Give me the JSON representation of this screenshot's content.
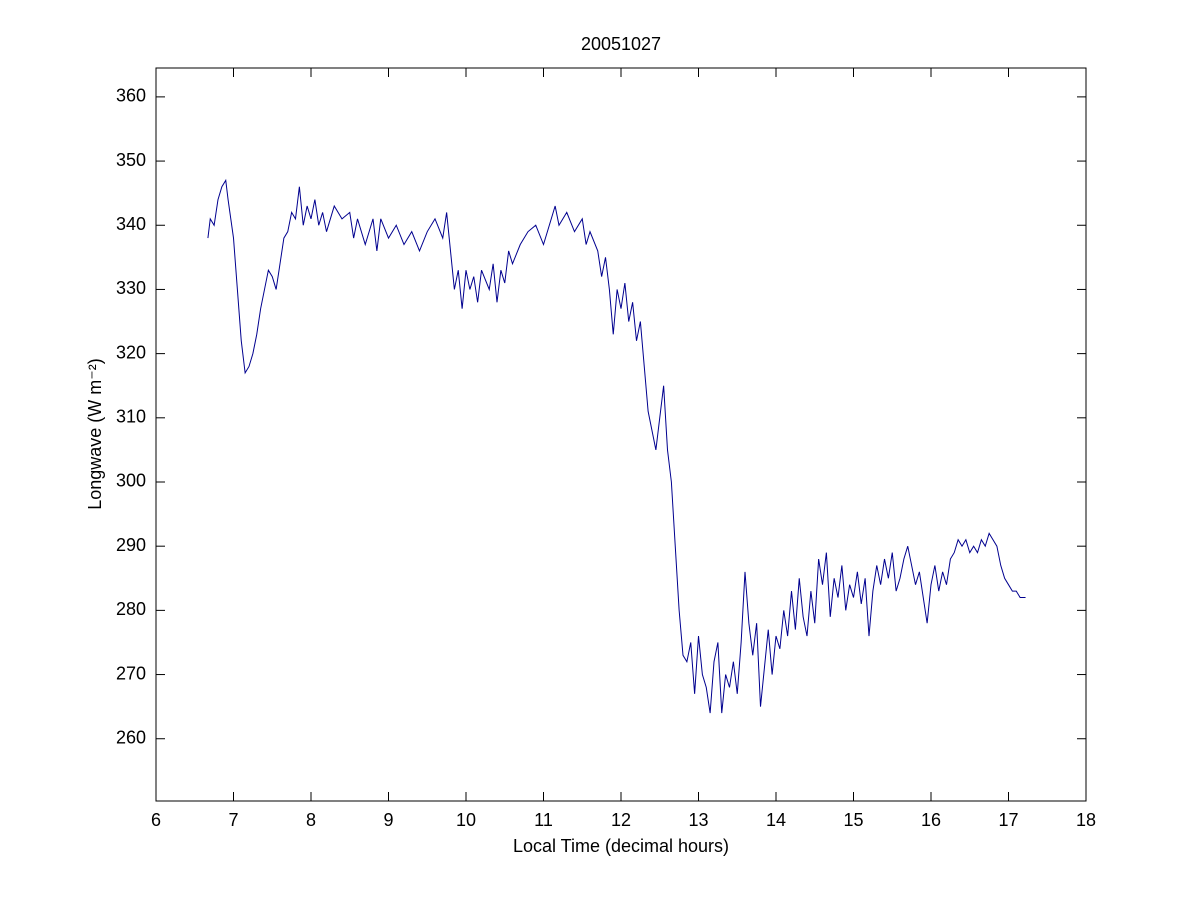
{
  "chart_data": {
    "type": "line",
    "title": "20051027",
    "xlabel": "Local Time (decimal hours)",
    "ylabel": "Longwave (W m⁻²)",
    "x": [
      6.67,
      6.7,
      6.75,
      6.8,
      6.85,
      6.9,
      6.93,
      7.0,
      7.05,
      7.1,
      7.15,
      7.2,
      7.25,
      7.3,
      7.35,
      7.4,
      7.45,
      7.5,
      7.55,
      7.6,
      7.65,
      7.7,
      7.75,
      7.8,
      7.85,
      7.9,
      7.95,
      8.0,
      8.05,
      8.1,
      8.15,
      8.2,
      8.3,
      8.4,
      8.5,
      8.55,
      8.6,
      8.7,
      8.8,
      8.85,
      8.9,
      9.0,
      9.1,
      9.2,
      9.3,
      9.4,
      9.5,
      9.6,
      9.7,
      9.75,
      9.8,
      9.85,
      9.9,
      9.95,
      10.0,
      10.05,
      10.1,
      10.15,
      10.2,
      10.3,
      10.35,
      10.4,
      10.45,
      10.5,
      10.55,
      10.6,
      10.7,
      10.8,
      10.9,
      11.0,
      11.1,
      11.15,
      11.2,
      11.3,
      11.4,
      11.5,
      11.55,
      11.6,
      11.7,
      11.75,
      11.8,
      11.85,
      11.9,
      11.95,
      12.0,
      12.05,
      12.1,
      12.15,
      12.2,
      12.25,
      12.3,
      12.35,
      12.4,
      12.45,
      12.5,
      12.55,
      12.6,
      12.65,
      12.7,
      12.75,
      12.8,
      12.85,
      12.9,
      12.95,
      13.0,
      13.05,
      13.1,
      13.15,
      13.2,
      13.25,
      13.3,
      13.35,
      13.4,
      13.45,
      13.5,
      13.55,
      13.6,
      13.65,
      13.7,
      13.75,
      13.8,
      13.85,
      13.9,
      13.95,
      14.0,
      14.05,
      14.1,
      14.15,
      14.2,
      14.25,
      14.3,
      14.35,
      14.4,
      14.45,
      14.5,
      14.55,
      14.6,
      14.65,
      14.7,
      14.75,
      14.8,
      14.85,
      14.9,
      14.95,
      15.0,
      15.05,
      15.1,
      15.15,
      15.2,
      15.25,
      15.3,
      15.35,
      15.4,
      15.45,
      15.5,
      15.55,
      15.6,
      15.65,
      15.7,
      15.75,
      15.8,
      15.85,
      15.9,
      15.95,
      16.0,
      16.05,
      16.1,
      16.15,
      16.2,
      16.25,
      16.3,
      16.35,
      16.4,
      16.45,
      16.5,
      16.55,
      16.6,
      16.65,
      16.7,
      16.75,
      16.8,
      16.85,
      16.9,
      16.95,
      17.0,
      17.05,
      17.1,
      17.15,
      17.22
    ],
    "series": [
      {
        "color": "#00008f",
        "values": [
          338,
          341,
          340,
          344,
          346,
          347,
          344,
          338,
          330,
          322,
          317,
          318,
          320,
          323,
          327,
          330,
          333,
          332,
          330,
          334,
          338,
          339,
          342,
          341,
          346,
          340,
          343,
          341,
          344,
          340,
          342,
          339,
          343,
          341,
          342,
          338,
          341,
          337,
          341,
          336,
          341,
          338,
          340,
          337,
          339,
          336,
          339,
          341,
          338,
          342,
          336,
          330,
          333,
          327,
          333,
          330,
          332,
          328,
          333,
          330,
          334,
          328,
          333,
          331,
          336,
          334,
          337,
          339,
          340,
          337,
          341,
          343,
          340,
          342,
          339,
          341,
          337,
          339,
          336,
          332,
          335,
          330,
          323,
          330,
          327,
          331,
          325,
          328,
          322,
          325,
          318,
          311,
          308,
          305,
          310,
          315,
          305,
          300,
          290,
          280,
          273,
          272,
          275,
          267,
          276,
          270,
          268,
          264,
          272,
          275,
          264,
          270,
          268,
          272,
          267,
          275,
          286,
          278,
          273,
          278,
          265,
          271,
          277,
          270,
          276,
          274,
          280,
          276,
          283,
          277,
          285,
          279,
          276,
          283,
          278,
          288,
          284,
          289,
          279,
          285,
          282,
          287,
          280,
          284,
          282,
          286,
          281,
          285,
          276,
          283,
          287,
          284,
          288,
          285,
          289,
          283,
          285,
          288,
          290,
          287,
          284,
          286,
          282,
          278,
          284,
          287,
          283,
          286,
          284,
          288,
          289,
          291,
          290,
          291,
          289,
          290,
          289,
          291,
          290,
          292,
          291,
          290,
          287,
          285,
          284,
          283,
          283,
          282,
          282
        ]
      }
    ],
    "xlim": [
      6,
      18
    ],
    "xticks": [
      6,
      7,
      8,
      9,
      10,
      11,
      12,
      13,
      14,
      15,
      16,
      17,
      18
    ],
    "ylim": [
      250.3,
      364.5
    ],
    "yticks": [
      260,
      270,
      280,
      290,
      300,
      310,
      320,
      330,
      340,
      350,
      360
    ],
    "grid": false
  }
}
